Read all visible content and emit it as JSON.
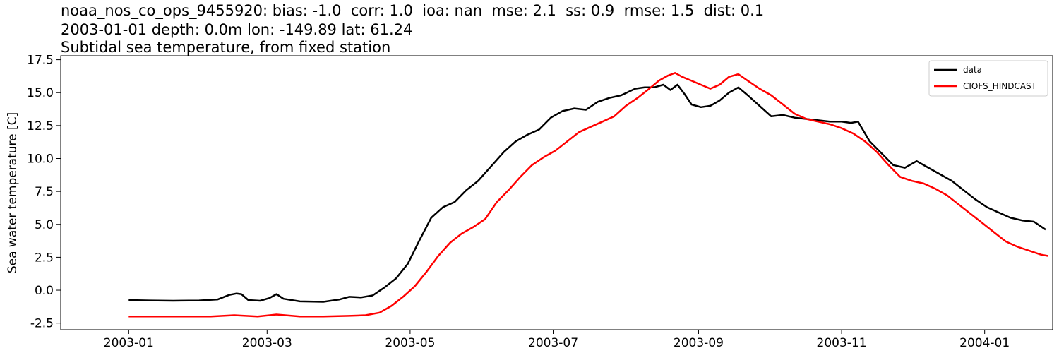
{
  "chart_data": {
    "type": "line",
    "title_lines": [
      "noaa_nos_co_ops_9455920: bias: -1.0  corr: 1.0  ioa: nan  mse: 2.1  ss: 0.9  rmse: 1.5  dist: 0.1",
      "2003-01-01 depth: 0.0m lon: -149.89 lat: 61.24",
      "Subtidal sea temperature, from fixed station"
    ],
    "xlabel": "",
    "ylabel": "Sea water temperature [C]",
    "x_ticks": [
      "2003-01",
      "2003-03",
      "2003-05",
      "2003-07",
      "2003-09",
      "2003-11",
      "2004-01"
    ],
    "x_range": [
      "2002-12-03",
      "2004-01-30"
    ],
    "ylim": [
      -3.0,
      17.8
    ],
    "y_ticks": [
      -2.5,
      0.0,
      2.5,
      5.0,
      7.5,
      10.0,
      12.5,
      15.0,
      17.5
    ],
    "grid": false,
    "legend_position": "top-right",
    "series": [
      {
        "name": "data",
        "color": "#000000",
        "points": [
          [
            "2003-01-01",
            -0.75
          ],
          [
            "2003-01-10",
            -0.78
          ],
          [
            "2003-01-20",
            -0.8
          ],
          [
            "2003-01-31",
            -0.78
          ],
          [
            "2003-02-08",
            -0.7
          ],
          [
            "2003-02-13",
            -0.35
          ],
          [
            "2003-02-16",
            -0.25
          ],
          [
            "2003-02-18",
            -0.3
          ],
          [
            "2003-02-21",
            -0.75
          ],
          [
            "2003-02-26",
            -0.8
          ],
          [
            "2003-03-02",
            -0.6
          ],
          [
            "2003-03-05",
            -0.3
          ],
          [
            "2003-03-08",
            -0.65
          ],
          [
            "2003-03-15",
            -0.85
          ],
          [
            "2003-03-25",
            -0.88
          ],
          [
            "2003-04-01",
            -0.7
          ],
          [
            "2003-04-05",
            -0.5
          ],
          [
            "2003-04-10",
            -0.55
          ],
          [
            "2003-04-15",
            -0.4
          ],
          [
            "2003-04-20",
            0.2
          ],
          [
            "2003-04-25",
            0.9
          ],
          [
            "2003-04-30",
            2.0
          ],
          [
            "2003-05-05",
            3.8
          ],
          [
            "2003-05-10",
            5.5
          ],
          [
            "2003-05-15",
            6.3
          ],
          [
            "2003-05-20",
            6.7
          ],
          [
            "2003-05-25",
            7.6
          ],
          [
            "2003-05-30",
            8.3
          ],
          [
            "2003-06-05",
            9.5
          ],
          [
            "2003-06-10",
            10.5
          ],
          [
            "2003-06-15",
            11.3
          ],
          [
            "2003-06-20",
            11.8
          ],
          [
            "2003-06-25",
            12.2
          ],
          [
            "2003-06-30",
            13.1
          ],
          [
            "2003-07-05",
            13.6
          ],
          [
            "2003-07-10",
            13.8
          ],
          [
            "2003-07-15",
            13.7
          ],
          [
            "2003-07-20",
            14.3
          ],
          [
            "2003-07-25",
            14.6
          ],
          [
            "2003-07-30",
            14.8
          ],
          [
            "2003-08-05",
            15.3
          ],
          [
            "2003-08-09",
            15.4
          ],
          [
            "2003-08-13",
            15.4
          ],
          [
            "2003-08-17",
            15.6
          ],
          [
            "2003-08-20",
            15.2
          ],
          [
            "2003-08-23",
            15.6
          ],
          [
            "2003-08-26",
            14.9
          ],
          [
            "2003-08-29",
            14.1
          ],
          [
            "2003-09-02",
            13.9
          ],
          [
            "2003-09-06",
            14.0
          ],
          [
            "2003-09-10",
            14.4
          ],
          [
            "2003-09-14",
            15.0
          ],
          [
            "2003-09-18",
            15.4
          ],
          [
            "2003-09-22",
            14.8
          ],
          [
            "2003-09-27",
            14.0
          ],
          [
            "2003-10-02",
            13.2
          ],
          [
            "2003-10-07",
            13.3
          ],
          [
            "2003-10-12",
            13.1
          ],
          [
            "2003-10-17",
            13.0
          ],
          [
            "2003-10-22",
            12.9
          ],
          [
            "2003-10-27",
            12.8
          ],
          [
            "2003-11-01",
            12.8
          ],
          [
            "2003-11-05",
            12.7
          ],
          [
            "2003-11-08",
            12.8
          ],
          [
            "2003-11-13",
            11.3
          ],
          [
            "2003-11-18",
            10.4
          ],
          [
            "2003-11-23",
            9.5
          ],
          [
            "2003-11-28",
            9.3
          ],
          [
            "2003-12-03",
            9.8
          ],
          [
            "2003-12-08",
            9.3
          ],
          [
            "2003-12-13",
            8.8
          ],
          [
            "2003-12-18",
            8.3
          ],
          [
            "2003-12-23",
            7.6
          ],
          [
            "2003-12-28",
            6.9
          ],
          [
            "2004-01-02",
            6.3
          ],
          [
            "2004-01-07",
            5.9
          ],
          [
            "2004-01-12",
            5.5
          ],
          [
            "2004-01-17",
            5.3
          ],
          [
            "2004-01-22",
            5.2
          ],
          [
            "2004-01-27",
            4.6
          ]
        ]
      },
      {
        "name": "CIOFS_HINDCAST",
        "color": "#ff0000",
        "points": [
          [
            "2003-01-01",
            -2.0
          ],
          [
            "2003-01-20",
            -2.0
          ],
          [
            "2003-02-05",
            -2.0
          ],
          [
            "2003-02-15",
            -1.9
          ],
          [
            "2003-02-25",
            -2.0
          ],
          [
            "2003-03-05",
            -1.85
          ],
          [
            "2003-03-15",
            -2.0
          ],
          [
            "2003-03-25",
            -2.0
          ],
          [
            "2003-04-05",
            -1.95
          ],
          [
            "2003-04-12",
            -1.9
          ],
          [
            "2003-04-18",
            -1.7
          ],
          [
            "2003-04-23",
            -1.2
          ],
          [
            "2003-04-28",
            -0.5
          ],
          [
            "2003-05-03",
            0.3
          ],
          [
            "2003-05-08",
            1.4
          ],
          [
            "2003-05-13",
            2.6
          ],
          [
            "2003-05-18",
            3.6
          ],
          [
            "2003-05-23",
            4.3
          ],
          [
            "2003-05-28",
            4.8
          ],
          [
            "2003-06-02",
            5.4
          ],
          [
            "2003-06-07",
            6.7
          ],
          [
            "2003-06-12",
            7.6
          ],
          [
            "2003-06-17",
            8.6
          ],
          [
            "2003-06-22",
            9.5
          ],
          [
            "2003-06-27",
            10.1
          ],
          [
            "2003-07-02",
            10.6
          ],
          [
            "2003-07-07",
            11.3
          ],
          [
            "2003-07-12",
            12.0
          ],
          [
            "2003-07-17",
            12.4
          ],
          [
            "2003-07-22",
            12.8
          ],
          [
            "2003-07-27",
            13.2
          ],
          [
            "2003-08-01",
            14.0
          ],
          [
            "2003-08-06",
            14.6
          ],
          [
            "2003-08-11",
            15.3
          ],
          [
            "2003-08-15",
            15.9
          ],
          [
            "2003-08-19",
            16.3
          ],
          [
            "2003-08-22",
            16.5
          ],
          [
            "2003-08-25",
            16.2
          ],
          [
            "2003-08-29",
            15.9
          ],
          [
            "2003-09-02",
            15.6
          ],
          [
            "2003-09-06",
            15.3
          ],
          [
            "2003-09-10",
            15.6
          ],
          [
            "2003-09-14",
            16.2
          ],
          [
            "2003-09-18",
            16.4
          ],
          [
            "2003-09-22",
            15.9
          ],
          [
            "2003-09-27",
            15.3
          ],
          [
            "2003-10-02",
            14.8
          ],
          [
            "2003-10-07",
            14.1
          ],
          [
            "2003-10-12",
            13.4
          ],
          [
            "2003-10-17",
            13.0
          ],
          [
            "2003-10-22",
            12.8
          ],
          [
            "2003-10-27",
            12.6
          ],
          [
            "2003-11-01",
            12.3
          ],
          [
            "2003-11-06",
            11.9
          ],
          [
            "2003-11-11",
            11.3
          ],
          [
            "2003-11-16",
            10.5
          ],
          [
            "2003-11-21",
            9.5
          ],
          [
            "2003-11-26",
            8.6
          ],
          [
            "2003-12-01",
            8.3
          ],
          [
            "2003-12-06",
            8.1
          ],
          [
            "2003-12-11",
            7.7
          ],
          [
            "2003-12-16",
            7.2
          ],
          [
            "2003-12-21",
            6.5
          ],
          [
            "2003-12-26",
            5.8
          ],
          [
            "2003-12-31",
            5.1
          ],
          [
            "2004-01-05",
            4.4
          ],
          [
            "2004-01-10",
            3.7
          ],
          [
            "2004-01-15",
            3.3
          ],
          [
            "2004-01-20",
            3.0
          ],
          [
            "2004-01-25",
            2.7
          ],
          [
            "2004-01-28",
            2.6
          ]
        ]
      }
    ]
  }
}
